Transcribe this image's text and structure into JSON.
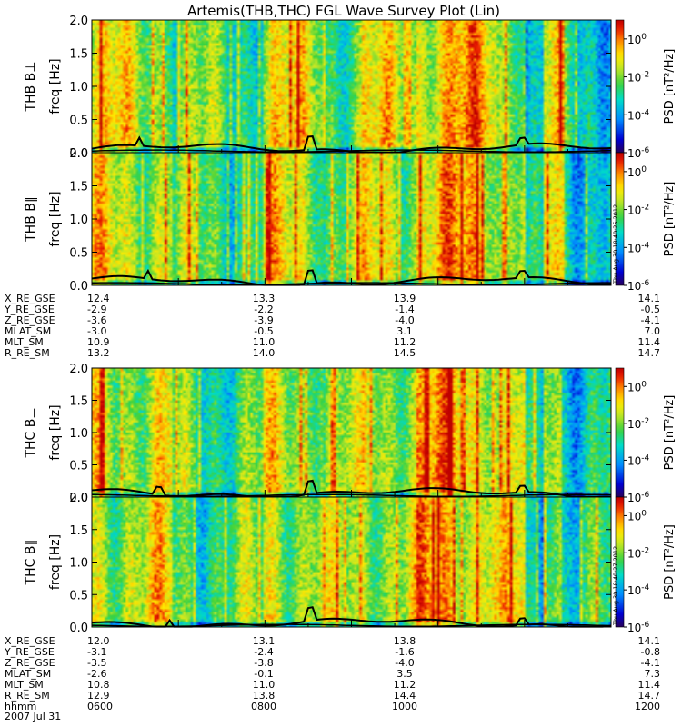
{
  "title": "Artemis(THB,THC) FGL Wave Survey Plot (Lin)",
  "chart_data": {
    "type": "heatmap",
    "x_range_hhmm": [
      "0600",
      "1200"
    ],
    "y_range_hz": [
      0,
      2.0
    ],
    "y_ticks": [
      "0.0",
      "0.5",
      "1.0",
      "1.5",
      "2.0"
    ],
    "colorbar": {
      "label": "PSD [nT²/Hz]",
      "scale": "log",
      "range": [
        1e-06,
        10
      ],
      "ticks": [
        {
          "value": 1,
          "label": "10^0"
        },
        {
          "value": 0.01,
          "label": "10^-2"
        },
        {
          "value": 0.0001,
          "label": "10^-4"
        },
        {
          "value": 1e-06,
          "label": "10^-6"
        }
      ]
    },
    "panels": [
      {
        "label": "THB B⊥",
        "ylabel": "freq [Hz]",
        "seed": 11
      },
      {
        "label": "THB B∥",
        "ylabel": "freq [Hz]",
        "seed": 23,
        "stamp": "Thu Aug 30 18:40:25 2012"
      },
      {
        "label": "THC B⊥",
        "ylabel": "freq [Hz]",
        "seed": 37
      },
      {
        "label": "THC B∥",
        "ylabel": "freq [Hz]",
        "seed": 51,
        "stamp": "Thu Aug 30 18:40:27 2012"
      }
    ]
  },
  "ephem_b": {
    "rows": [
      {
        "label": "X_RE_GSE",
        "values": [
          "12.4",
          "13.3",
          "13.9",
          "14.1"
        ]
      },
      {
        "label": "Y_RE_GSE",
        "values": [
          "-2.9",
          "-2.2",
          "-1.4",
          "-0.5"
        ]
      },
      {
        "label": "Z_RE_GSE",
        "values": [
          "-3.6",
          "-3.9",
          "-4.0",
          "-4.1"
        ]
      },
      {
        "label": "MLAT_SM",
        "values": [
          "-3.0",
          "-0.5",
          "3.1",
          "7.0"
        ]
      },
      {
        "label": "MLT_SM",
        "values": [
          "10.9",
          "11.0",
          "11.2",
          "11.4"
        ]
      },
      {
        "label": "R_RE_SM",
        "values": [
          "13.2",
          "14.0",
          "14.5",
          "14.7"
        ]
      }
    ]
  },
  "ephem_c": {
    "rows": [
      {
        "label": "X_RE_GSE",
        "values": [
          "12.0",
          "13.1",
          "13.8",
          "14.1"
        ]
      },
      {
        "label": "Y_RE_GSE",
        "values": [
          "-3.1",
          "-2.4",
          "-1.6",
          "-0.8"
        ]
      },
      {
        "label": "Z_RE_GSE",
        "values": [
          "-3.5",
          "-3.8",
          "-4.0",
          "-4.1"
        ]
      },
      {
        "label": "MLAT_SM",
        "values": [
          "-2.6",
          "-0.1",
          "3.5",
          "7.3"
        ]
      },
      {
        "label": "MLT_SM",
        "values": [
          "10.8",
          "11.0",
          "11.2",
          "11.4"
        ]
      },
      {
        "label": "R_RE_SM",
        "values": [
          "12.9",
          "13.8",
          "14.4",
          "14.7"
        ]
      },
      {
        "label": "hhmm",
        "values": [
          "0600",
          "0800",
          "1000",
          "1200"
        ]
      }
    ]
  },
  "date_label": "2007 Jul 31"
}
